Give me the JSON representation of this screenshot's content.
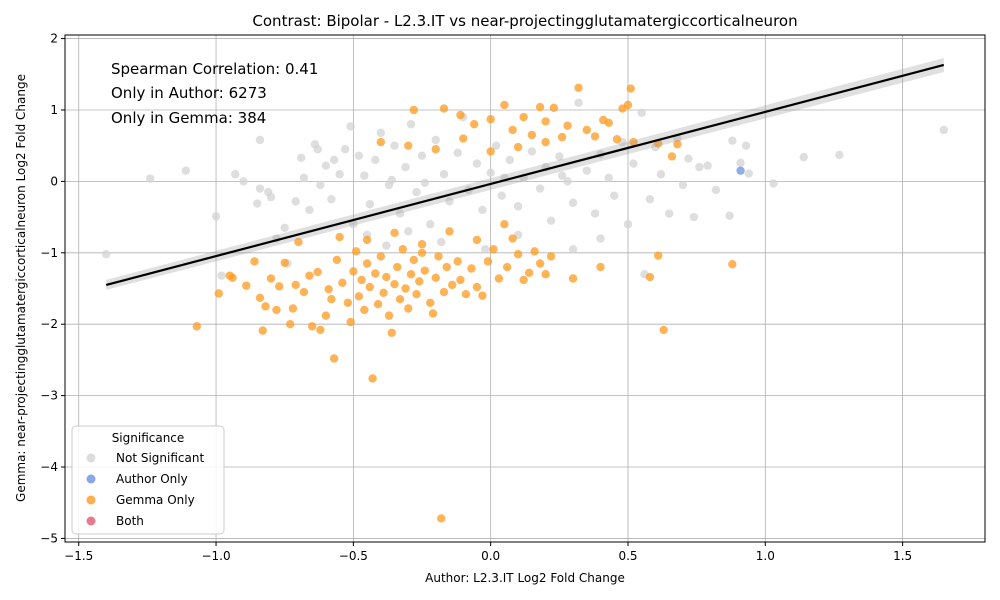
{
  "chart_data": {
    "type": "scatter",
    "title": "Contrast: Bipolar - L2.3.IT vs near-projectingglutamatergiccorticalneuron",
    "xlabel": "Author: L2.3.IT Log2 Fold Change",
    "ylabel": "Gemma: near-projectingglutamatergiccorticalneuron Log2 Fold Change",
    "xlim": [
      -1.55,
      1.8
    ],
    "ylim": [
      -5.05,
      2.05
    ],
    "x_ticks": [
      -1.5,
      -1.0,
      -0.5,
      0.0,
      0.5,
      1.0,
      1.5
    ],
    "y_ticks": [
      -5,
      -4,
      -3,
      -2,
      -1,
      0,
      1,
      2
    ],
    "grid": true,
    "annotations": [
      "Spearman Correlation: 0.41",
      "Only in Author: 6273",
      "Only in Gemma: 384"
    ],
    "regression_line": {
      "x": [
        -1.4,
        1.65
      ],
      "y": [
        -1.45,
        1.63
      ]
    },
    "legend": {
      "title": "Significance",
      "placement": "lower-left",
      "entries": [
        {
          "label": "Not Significant",
          "color": "#d3d3d3"
        },
        {
          "label": "Author Only",
          "color": "#6b8ee8"
        },
        {
          "label": "Gemma Only",
          "color": "#ff9a1f"
        },
        {
          "label": "Both",
          "color": "#e05a74"
        }
      ]
    },
    "series": [
      {
        "name": "Not Significant",
        "color": "#d3d3d3",
        "points": [
          [
            -1.4,
            -1.02
          ],
          [
            -1.24,
            0.04
          ],
          [
            -1.11,
            0.15
          ],
          [
            -1.0,
            -0.49
          ],
          [
            -0.98,
            -1.32
          ],
          [
            -0.93,
            0.1
          ],
          [
            -0.9,
            0.0
          ],
          [
            -0.85,
            -0.31
          ],
          [
            -0.84,
            0.58
          ],
          [
            -0.84,
            -0.1
          ],
          [
            -0.81,
            -0.15
          ],
          [
            -0.8,
            -0.22
          ],
          [
            -0.78,
            -0.8
          ],
          [
            -0.75,
            -0.65
          ],
          [
            -0.74,
            -1.15
          ],
          [
            -0.71,
            -0.28
          ],
          [
            -0.69,
            0.33
          ],
          [
            -0.68,
            0.05
          ],
          [
            -0.66,
            -0.4
          ],
          [
            -0.64,
            0.52
          ],
          [
            -0.63,
            0.45
          ],
          [
            -0.6,
            0.22
          ],
          [
            -0.58,
            -0.25
          ],
          [
            -0.55,
            0.1
          ],
          [
            -0.53,
            0.45
          ],
          [
            -0.51,
            0.77
          ],
          [
            -0.5,
            -0.6
          ],
          [
            -0.48,
            0.36
          ],
          [
            -0.46,
            0.08
          ],
          [
            -0.44,
            -0.32
          ],
          [
            -0.42,
            0.3
          ],
          [
            -0.4,
            0.68
          ],
          [
            -0.37,
            -0.05
          ],
          [
            -0.35,
            0.5
          ],
          [
            -0.33,
            -0.45
          ],
          [
            -0.31,
            0.2
          ],
          [
            -0.29,
            0.8
          ],
          [
            -0.27,
            -0.15
          ],
          [
            -0.25,
            0.36
          ],
          [
            -0.22,
            -0.6
          ],
          [
            -0.2,
            0.58
          ],
          [
            -0.17,
            0.1
          ],
          [
            -0.15,
            -0.28
          ],
          [
            -0.12,
            0.4
          ],
          [
            -0.1,
            0.9
          ],
          [
            -0.08,
            -0.12
          ],
          [
            -0.05,
            0.25
          ],
          [
            -0.03,
            -0.4
          ],
          [
            0.0,
            0.12
          ],
          [
            0.02,
            0.5
          ],
          [
            0.04,
            -0.2
          ],
          [
            0.07,
            0.3
          ],
          [
            0.1,
            -0.35
          ],
          [
            0.12,
            0.05
          ],
          [
            0.15,
            0.42
          ],
          [
            0.18,
            -0.1
          ],
          [
            0.2,
            0.2
          ],
          [
            0.22,
            -0.55
          ],
          [
            0.25,
            0.35
          ],
          [
            0.28,
            0.0
          ],
          [
            0.3,
            -0.3
          ],
          [
            0.32,
            1.1
          ],
          [
            0.35,
            0.15
          ],
          [
            0.38,
            -0.45
          ],
          [
            0.4,
            0.38
          ],
          [
            0.43,
            0.05
          ],
          [
            0.45,
            -0.2
          ],
          [
            0.48,
            0.55
          ],
          [
            0.5,
            -0.6
          ],
          [
            0.52,
            0.25
          ],
          [
            0.55,
            0.96
          ],
          [
            0.56,
            -1.3
          ],
          [
            0.58,
            -0.25
          ],
          [
            0.6,
            0.48
          ],
          [
            0.62,
            0.1
          ],
          [
            0.65,
            -0.45
          ],
          [
            0.68,
            0.6
          ],
          [
            0.7,
            -0.05
          ],
          [
            0.72,
            0.32
          ],
          [
            0.74,
            -0.5
          ],
          [
            0.76,
            0.2
          ],
          [
            0.79,
            0.22
          ],
          [
            0.82,
            -0.12
          ],
          [
            0.87,
            -0.48
          ],
          [
            0.88,
            0.57
          ],
          [
            0.91,
            0.26
          ],
          [
            0.93,
            0.5
          ],
          [
            0.94,
            0.11
          ],
          [
            1.03,
            -0.03
          ],
          [
            1.14,
            0.34
          ],
          [
            1.27,
            0.37
          ],
          [
            1.65,
            0.72
          ],
          [
            -0.45,
            -0.75
          ],
          [
            -0.38,
            -0.9
          ],
          [
            -0.3,
            -0.7
          ],
          [
            -0.18,
            -0.85
          ],
          [
            -0.02,
            -0.95
          ],
          [
            0.1,
            -0.75
          ],
          [
            0.3,
            -0.95
          ],
          [
            0.4,
            -0.8
          ],
          [
            -0.62,
            -0.05
          ],
          [
            -0.57,
            0.3
          ],
          [
            -0.36,
            0.02
          ],
          [
            -0.24,
            -0.02
          ],
          [
            0.05,
            0.05
          ],
          [
            0.26,
            0.08
          ]
        ]
      },
      {
        "name": "Author Only",
        "color": "#6b8ee8",
        "points": [
          [
            0.91,
            0.15
          ]
        ]
      },
      {
        "name": "Gemma Only",
        "color": "#ff9a1f",
        "points": [
          [
            -1.07,
            -2.03
          ],
          [
            -0.99,
            -1.57
          ],
          [
            -0.95,
            -1.32
          ],
          [
            -0.94,
            -1.35
          ],
          [
            -0.89,
            -1.46
          ],
          [
            -0.86,
            -1.12
          ],
          [
            -0.84,
            -1.63
          ],
          [
            -0.83,
            -2.09
          ],
          [
            -0.82,
            -1.75
          ],
          [
            -0.8,
            -1.36
          ],
          [
            -0.78,
            -1.8
          ],
          [
            -0.77,
            -1.47
          ],
          [
            -0.75,
            -1.14
          ],
          [
            -0.73,
            -2.0
          ],
          [
            -0.72,
            -1.78
          ],
          [
            -0.71,
            -1.45
          ],
          [
            -0.7,
            -0.85
          ],
          [
            -0.68,
            -1.55
          ],
          [
            -0.66,
            -1.32
          ],
          [
            -0.65,
            -2.03
          ],
          [
            -0.63,
            -1.27
          ],
          [
            -0.62,
            -2.08
          ],
          [
            -0.6,
            -1.88
          ],
          [
            -0.59,
            -1.51
          ],
          [
            -0.58,
            -1.65
          ],
          [
            -0.57,
            -2.48
          ],
          [
            -0.56,
            -1.1
          ],
          [
            -0.54,
            -1.42
          ],
          [
            -0.52,
            -1.7
          ],
          [
            -0.51,
            -1.97
          ],
          [
            -0.5,
            -1.26
          ],
          [
            -0.49,
            -0.98
          ],
          [
            -0.48,
            -1.61
          ],
          [
            -0.47,
            -1.38
          ],
          [
            -0.46,
            -1.8
          ],
          [
            -0.45,
            -1.15
          ],
          [
            -0.44,
            -1.48
          ],
          [
            -0.43,
            -2.76
          ],
          [
            -0.42,
            -1.29
          ],
          [
            -0.41,
            -1.72
          ],
          [
            -0.4,
            -1.05
          ],
          [
            -0.39,
            -1.56
          ],
          [
            -0.38,
            -1.34
          ],
          [
            -0.37,
            -1.88
          ],
          [
            -0.36,
            -2.12
          ],
          [
            -0.35,
            -1.44
          ],
          [
            -0.34,
            -1.2
          ],
          [
            -0.33,
            -1.65
          ],
          [
            -0.32,
            -0.95
          ],
          [
            -0.31,
            -1.5
          ],
          [
            -0.3,
            -1.78
          ],
          [
            -0.29,
            -1.3
          ],
          [
            -0.28,
            -1.1
          ],
          [
            -0.27,
            -1.58
          ],
          [
            -0.26,
            -1.4
          ],
          [
            -0.25,
            -1.0
          ],
          [
            -0.24,
            -1.25
          ],
          [
            -0.22,
            -1.7
          ],
          [
            -0.21,
            -1.85
          ],
          [
            -0.2,
            -1.35
          ],
          [
            -0.19,
            -1.05
          ],
          [
            -0.18,
            -4.72
          ],
          [
            -0.17,
            -1.55
          ],
          [
            -0.16,
            -1.2
          ],
          [
            -0.14,
            -1.45
          ],
          [
            -0.12,
            -1.12
          ],
          [
            -0.11,
            -1.38
          ],
          [
            -0.09,
            -1.58
          ],
          [
            -0.07,
            -1.22
          ],
          [
            -0.05,
            -1.48
          ],
          [
            -0.03,
            -1.6
          ],
          [
            -0.01,
            -1.12
          ],
          [
            0.01,
            -0.95
          ],
          [
            0.03,
            -1.36
          ],
          [
            0.06,
            -1.2
          ],
          [
            0.08,
            -0.8
          ],
          [
            0.1,
            -1.02
          ],
          [
            0.12,
            -1.38
          ],
          [
            0.14,
            -1.28
          ],
          [
            0.16,
            -0.98
          ],
          [
            0.18,
            -1.15
          ],
          [
            0.2,
            -1.3
          ],
          [
            0.22,
            -1.05
          ],
          [
            0.3,
            -1.36
          ],
          [
            0.4,
            -1.2
          ],
          [
            0.58,
            -1.34
          ],
          [
            0.61,
            -1.04
          ],
          [
            0.63,
            -2.08
          ],
          [
            0.88,
            -1.16
          ],
          [
            -0.28,
            1.0
          ],
          [
            -0.17,
            1.02
          ],
          [
            -0.11,
            0.93
          ],
          [
            -0.06,
            0.8
          ],
          [
            0.0,
            0.87
          ],
          [
            0.05,
            1.07
          ],
          [
            0.08,
            0.72
          ],
          [
            0.12,
            0.9
          ],
          [
            0.15,
            0.65
          ],
          [
            0.18,
            1.04
          ],
          [
            0.2,
            0.84
          ],
          [
            0.23,
            1.03
          ],
          [
            0.26,
            0.62
          ],
          [
            0.28,
            0.78
          ],
          [
            0.32,
            1.31
          ],
          [
            0.35,
            0.72
          ],
          [
            0.38,
            0.63
          ],
          [
            0.41,
            0.86
          ],
          [
            0.43,
            0.82
          ],
          [
            0.46,
            0.59
          ],
          [
            0.48,
            1.02
          ],
          [
            0.5,
            1.07
          ],
          [
            0.51,
            1.3
          ],
          [
            0.52,
            0.55
          ],
          [
            0.61,
            0.53
          ],
          [
            0.66,
            0.35
          ],
          [
            0.68,
            0.52
          ],
          [
            -0.55,
            -0.78
          ],
          [
            -0.45,
            -0.82
          ],
          [
            -0.35,
            -0.72
          ],
          [
            -0.25,
            -0.88
          ],
          [
            -0.15,
            -0.7
          ],
          [
            -0.05,
            -0.82
          ],
          [
            0.05,
            -0.6
          ],
          [
            -0.4,
            0.55
          ],
          [
            -0.3,
            0.5
          ],
          [
            -0.2,
            0.45
          ],
          [
            -0.1,
            0.6
          ],
          [
            0.0,
            0.42
          ],
          [
            0.1,
            0.48
          ],
          [
            0.2,
            0.55
          ]
        ]
      },
      {
        "name": "Both",
        "color": "#e05a74",
        "points": []
      }
    ]
  }
}
